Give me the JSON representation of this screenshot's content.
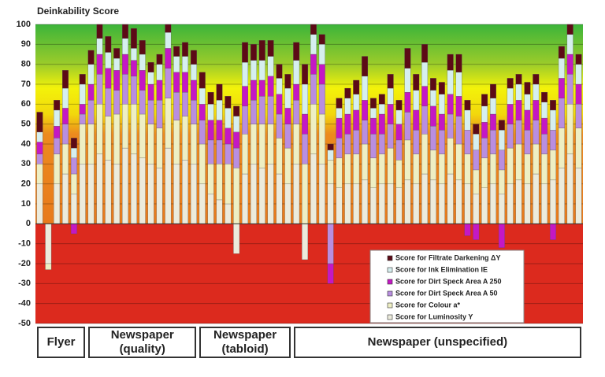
{
  "chart_data": {
    "type": "stacked_bar",
    "title": "Deinkability Score",
    "ylim": [
      -50,
      100
    ],
    "yticks": [
      -50,
      -40,
      -30,
      -20,
      -10,
      0,
      10,
      20,
      30,
      40,
      50,
      60,
      70,
      80,
      90,
      100
    ],
    "grid": true,
    "legend": "lower right",
    "categories": [
      null,
      null,
      null,
      null,
      null,
      null,
      null,
      null,
      null,
      null,
      null,
      null,
      null,
      null,
      null,
      null,
      null,
      null,
      null,
      null,
      null,
      null,
      null,
      null,
      null,
      null,
      null,
      null,
      null,
      null,
      null,
      null,
      null,
      null,
      null,
      null,
      null,
      null,
      null,
      null,
      null,
      null,
      null,
      null,
      null,
      null,
      null,
      null,
      null,
      null,
      null,
      null,
      null,
      null,
      null,
      null,
      null,
      null,
      null,
      null,
      null,
      null,
      null,
      null
    ],
    "groups": [
      {
        "name": "Flyer",
        "size": 6
      },
      {
        "name": "Newspaper (quality)",
        "size": 13
      },
      {
        "name": "Newspaper (tabloid)",
        "size": 11
      },
      {
        "name": "Newspaper (unspecified)",
        "size": 34
      }
    ],
    "series": [
      {
        "name": "Score for Luminosity Y",
        "color": "#ecebdc",
        "values": [
          20,
          -20,
          20,
          25,
          15,
          30,
          30,
          35,
          32,
          30,
          38,
          35,
          33,
          30,
          28,
          38,
          30,
          32,
          30,
          20,
          15,
          12,
          10,
          -15,
          25,
          30,
          28,
          30,
          25,
          20,
          30,
          -18,
          35,
          30,
          20,
          18,
          20,
          20,
          22,
          18,
          20,
          20,
          18,
          22,
          20,
          25,
          22,
          20,
          25,
          22,
          20,
          15,
          18,
          20,
          15,
          20,
          22,
          20,
          25,
          20,
          22,
          28,
          35,
          28
        ]
      },
      {
        "name": "Score for Colour a*",
        "color": "#eeefc4",
        "values": [
          10,
          -3,
          15,
          15,
          10,
          20,
          20,
          25,
          22,
          25,
          22,
          25,
          22,
          20,
          20,
          25,
          22,
          22,
          20,
          20,
          15,
          18,
          20,
          28,
          20,
          20,
          22,
          20,
          18,
          18,
          20,
          30,
          25,
          25,
          12,
          15,
          15,
          15,
          18,
          15,
          15,
          18,
          14,
          20,
          15,
          20,
          15,
          15,
          18,
          18,
          15,
          12,
          15,
          15,
          12,
          18,
          18,
          15,
          15,
          15,
          15,
          20,
          25,
          20
        ]
      },
      {
        "name": "Score for Dirt Speck Area A 50",
        "color": "#b98ee0",
        "values": [
          5,
          0,
          8,
          10,
          8,
          5,
          12,
          15,
          14,
          12,
          15,
          14,
          12,
          12,
          14,
          15,
          14,
          12,
          12,
          12,
          12,
          12,
          10,
          10,
          14,
          12,
          14,
          14,
          12,
          12,
          12,
          15,
          15,
          15,
          -20,
          10,
          10,
          12,
          12,
          12,
          10,
          12,
          10,
          14,
          12,
          14,
          12,
          12,
          12,
          14,
          12,
          10,
          10,
          12,
          10,
          12,
          12,
          12,
          12,
          10,
          10,
          15,
          15,
          12
        ]
      },
      {
        "name": "Score for Dirt Speck Area A 250",
        "color": "#c418c4",
        "values": [
          6,
          0,
          6,
          8,
          -5,
          5,
          8,
          10,
          10,
          10,
          10,
          8,
          10,
          8,
          10,
          10,
          10,
          10,
          10,
          8,
          10,
          10,
          8,
          8,
          10,
          10,
          8,
          10,
          10,
          8,
          8,
          10,
          10,
          10,
          -10,
          10,
          10,
          10,
          10,
          8,
          10,
          10,
          8,
          10,
          10,
          10,
          10,
          8,
          10,
          10,
          -6,
          -8,
          8,
          8,
          -12,
          10,
          10,
          10,
          10,
          8,
          -8,
          10,
          10,
          10
        ]
      },
      {
        "name": "Score for Ink Elimination IE",
        "color": "#d6efef",
        "values": [
          5,
          0,
          8,
          10,
          5,
          10,
          10,
          8,
          8,
          6,
          8,
          6,
          8,
          6,
          8,
          8,
          8,
          8,
          8,
          8,
          8,
          10,
          10,
          8,
          12,
          10,
          10,
          10,
          8,
          10,
          12,
          15,
          10,
          10,
          5,
          5,
          8,
          8,
          12,
          5,
          5,
          8,
          7,
          12,
          10,
          12,
          8,
          10,
          12,
          12,
          10,
          8,
          8,
          8,
          10,
          8,
          8,
          8,
          8,
          8,
          10,
          10,
          10,
          10
        ]
      },
      {
        "name": "Score for Filtrate Darkening ΔY",
        "color": "#5c0a16",
        "values": [
          10,
          0,
          5,
          9,
          5,
          5,
          7,
          7,
          8,
          5,
          7,
          10,
          7,
          5,
          5,
          4,
          5,
          7,
          7,
          8,
          6,
          8,
          6,
          5,
          10,
          8,
          10,
          8,
          7,
          7,
          9,
          10,
          5,
          5,
          3,
          5,
          5,
          7,
          10,
          5,
          5,
          7,
          5,
          10,
          8,
          9,
          6,
          6,
          8,
          9,
          5,
          5,
          6,
          7,
          5,
          5,
          5,
          6,
          5,
          5,
          5,
          6,
          5,
          5
        ]
      }
    ]
  }
}
